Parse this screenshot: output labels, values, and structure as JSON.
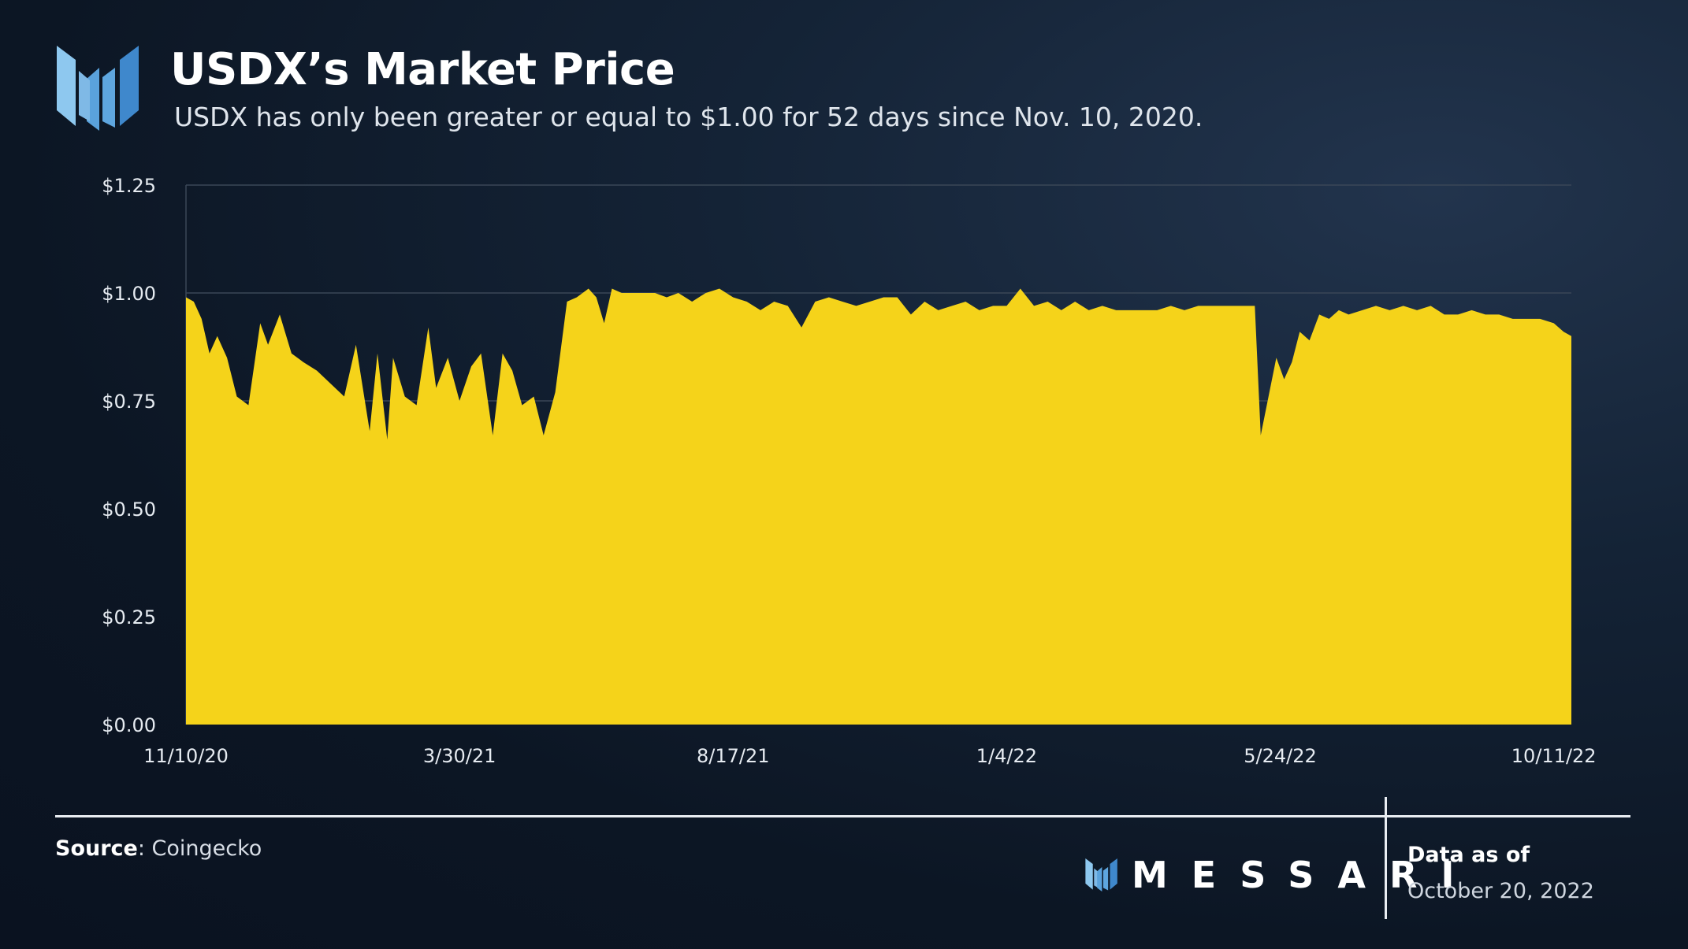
{
  "header": {
    "title": "USDX’s Market Price",
    "subtitle": "USDX has only been greater or equal to $1.00 for 52 days since Nov. 10, 2020."
  },
  "footer": {
    "source_label": "Source",
    "source_value": ": Coingecko",
    "brand": "MESSARI",
    "data_as_of_label": "Data as of",
    "data_as_of_date": "October 20, 2022"
  },
  "colors": {
    "fill": "#F5D31A",
    "gridline": "#3a4757",
    "axis_text": "#e6ebf1",
    "logo_light": "#8ec8ef",
    "logo_dark": "#3f88cc"
  },
  "chart_data": {
    "type": "area",
    "title": "USDX’s Market Price",
    "xlabel": "",
    "ylabel": "",
    "ylim": [
      0,
      1.25
    ],
    "y_ticks": [
      "$0.00",
      "$0.25",
      "$0.50",
      "$0.75",
      "$1.00",
      "$1.25"
    ],
    "y_tick_values": [
      0,
      0.25,
      0.5,
      0.75,
      1.0,
      1.25
    ],
    "x_ticks": [
      "11/10/20",
      "3/30/21",
      "8/17/21",
      "1/4/22",
      "5/24/22",
      "10/11/22"
    ],
    "x_tick_dates": [
      "2020-11-10",
      "2021-03-30",
      "2021-08-17",
      "2022-01-04",
      "2022-05-24",
      "2022-10-11"
    ],
    "x_range": [
      "2020-11-10",
      "2022-10-20"
    ],
    "grid": true,
    "series": [
      {
        "x": [
          "2020-11-10",
          "2020-11-14",
          "2020-11-18",
          "2020-11-22",
          "2020-11-26",
          "2020-12-01",
          "2020-12-06",
          "2020-12-12",
          "2020-12-18",
          "2020-12-22",
          "2020-12-28",
          "2021-01-03",
          "2021-01-09",
          "2021-01-16",
          "2021-01-23",
          "2021-01-30",
          "2021-02-05",
          "2021-02-12",
          "2021-02-16",
          "2021-02-21",
          "2021-02-24",
          "2021-03-02",
          "2021-03-08",
          "2021-03-14",
          "2021-03-18",
          "2021-03-24",
          "2021-03-30",
          "2021-04-05",
          "2021-04-10",
          "2021-04-16",
          "2021-04-21",
          "2021-04-26",
          "2021-05-01",
          "2021-05-07",
          "2021-05-12",
          "2021-05-18",
          "2021-05-24",
          "2021-05-29",
          "2021-06-04",
          "2021-06-08",
          "2021-06-12",
          "2021-06-16",
          "2021-06-21",
          "2021-06-27",
          "2021-07-02",
          "2021-07-08",
          "2021-07-14",
          "2021-07-20",
          "2021-07-27",
          "2021-08-03",
          "2021-08-10",
          "2021-08-17",
          "2021-08-24",
          "2021-08-31",
          "2021-09-07",
          "2021-09-14",
          "2021-09-21",
          "2021-09-28",
          "2021-10-05",
          "2021-10-12",
          "2021-10-19",
          "2021-10-26",
          "2021-11-02",
          "2021-11-09",
          "2021-11-16",
          "2021-11-23",
          "2021-11-30",
          "2021-12-07",
          "2021-12-14",
          "2021-12-21",
          "2021-12-28",
          "2022-01-04",
          "2022-01-11",
          "2022-01-18",
          "2022-01-25",
          "2022-02-01",
          "2022-02-08",
          "2022-02-15",
          "2022-02-22",
          "2022-03-01",
          "2022-03-08",
          "2022-03-15",
          "2022-03-22",
          "2022-03-29",
          "2022-04-05",
          "2022-04-12",
          "2022-04-19",
          "2022-04-26",
          "2022-05-03",
          "2022-05-08",
          "2022-05-11",
          "2022-05-14",
          "2022-05-18",
          "2022-05-22",
          "2022-05-26",
          "2022-05-30",
          "2022-06-03",
          "2022-06-08",
          "2022-06-13",
          "2022-06-18",
          "2022-06-23",
          "2022-06-28",
          "2022-07-05",
          "2022-07-12",
          "2022-07-19",
          "2022-07-26",
          "2022-08-02",
          "2022-08-09",
          "2022-08-16",
          "2022-08-23",
          "2022-08-30",
          "2022-09-06",
          "2022-09-13",
          "2022-09-20",
          "2022-09-27",
          "2022-10-04",
          "2022-10-11",
          "2022-10-16",
          "2022-10-20"
        ],
        "y": [
          0.99,
          0.98,
          0.94,
          0.86,
          0.9,
          0.85,
          0.76,
          0.74,
          0.93,
          0.88,
          0.95,
          0.86,
          0.84,
          0.82,
          0.79,
          0.76,
          0.88,
          0.68,
          0.86,
          0.66,
          0.85,
          0.76,
          0.74,
          0.92,
          0.78,
          0.85,
          0.75,
          0.83,
          0.86,
          0.67,
          0.86,
          0.82,
          0.74,
          0.76,
          0.67,
          0.77,
          0.98,
          0.99,
          1.01,
          0.99,
          0.93,
          1.01,
          1.0,
          1.0,
          1.0,
          1.0,
          0.99,
          1.0,
          0.98,
          1.0,
          1.01,
          0.99,
          0.98,
          0.96,
          0.98,
          0.97,
          0.92,
          0.98,
          0.99,
          0.98,
          0.97,
          0.98,
          0.99,
          0.99,
          0.95,
          0.98,
          0.96,
          0.97,
          0.98,
          0.96,
          0.97,
          0.97,
          1.01,
          0.97,
          0.98,
          0.96,
          0.98,
          0.96,
          0.97,
          0.96,
          0.96,
          0.96,
          0.96,
          0.97,
          0.96,
          0.97,
          0.97,
          0.97,
          0.97,
          0.97,
          0.97,
          0.67,
          0.76,
          0.85,
          0.8,
          0.84,
          0.91,
          0.89,
          0.95,
          0.94,
          0.96,
          0.95,
          0.96,
          0.97,
          0.96,
          0.97,
          0.96,
          0.97,
          0.95,
          0.95,
          0.96,
          0.95,
          0.95,
          0.94,
          0.94,
          0.94,
          0.93,
          0.91,
          0.9
        ]
      }
    ]
  }
}
